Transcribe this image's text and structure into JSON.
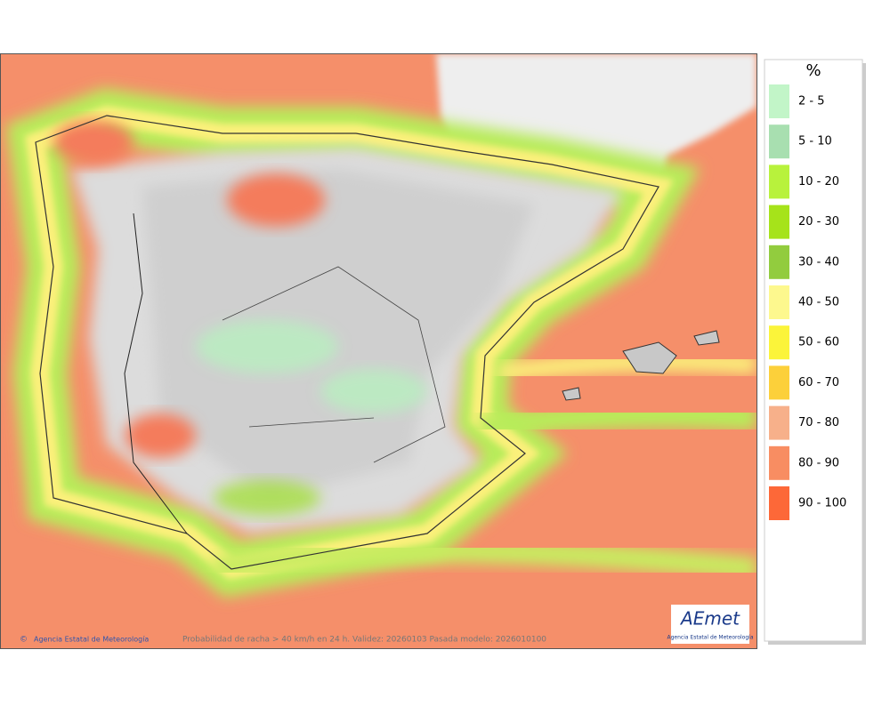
{
  "legend": {
    "title": "%",
    "items": [
      {
        "label": "2 - 5",
        "color": "#c2f5c8"
      },
      {
        "label": "5 - 10",
        "color": "#a8dfb0"
      },
      {
        "label": "10 - 20",
        "color": "#b8f23c"
      },
      {
        "label": "20 - 30",
        "color": "#a6e31a"
      },
      {
        "label": "30 - 40",
        "color": "#92cc3e"
      },
      {
        "label": "40 - 50",
        "color": "#fdf88e"
      },
      {
        "label": "50 - 60",
        "color": "#fbf43a"
      },
      {
        "label": "60 - 70",
        "color": "#fcd03a"
      },
      {
        "label": "70 - 80",
        "color": "#f7b08a"
      },
      {
        "label": "80 - 90",
        "color": "#f88d62"
      },
      {
        "label": "90 - 100",
        "color": "#fd6838"
      }
    ]
  },
  "credit": "Agencia Estatal de Meteorología",
  "caption": "Probabilidad de racha > 40 km/h en 24 h. Validez: 20260103 Pasada modelo: 2026010100",
  "logo": {
    "text": "AEmet",
    "subtitle": "Agencia Estatal de Meteorología"
  }
}
